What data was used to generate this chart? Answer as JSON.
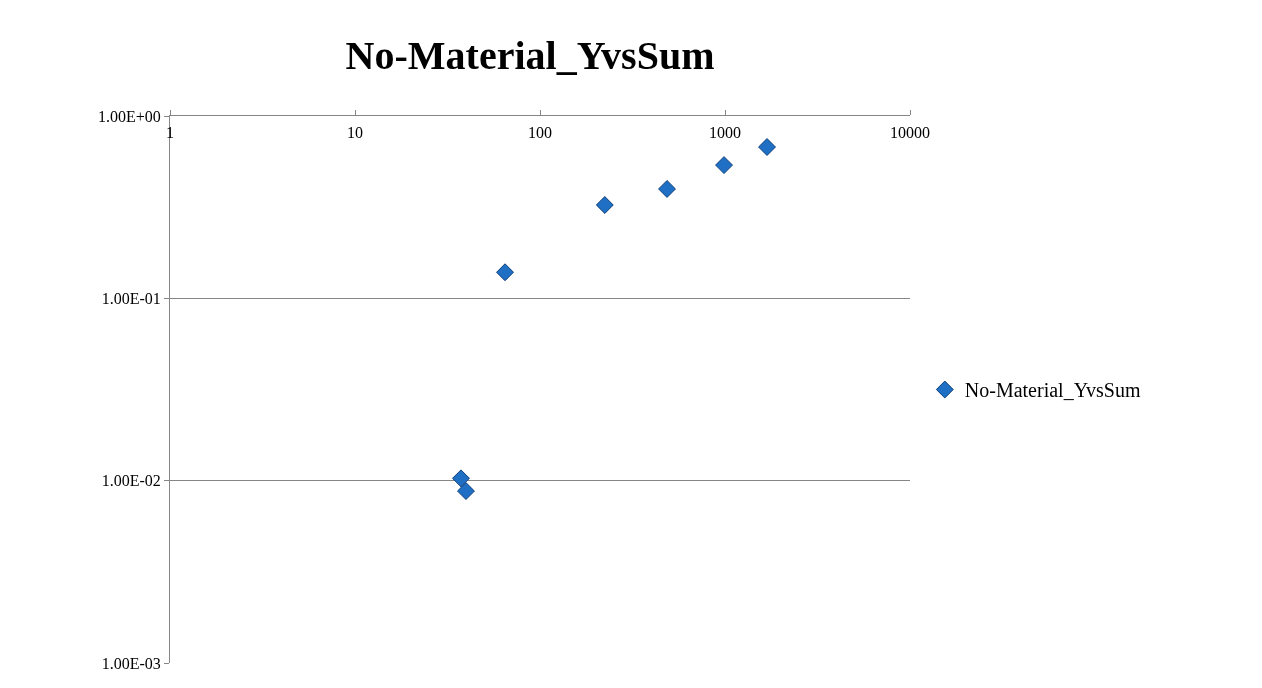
{
  "chart_data": {
    "type": "scatter",
    "title": "No-Material_YvsSum",
    "x": [
      37.4,
      39.8,
      64.7,
      224,
      486,
      988,
      1687
    ],
    "series": [
      {
        "name": "No-Material_YvsSum",
        "color": "#1f6fc5",
        "values": [
          0.0103,
          0.00877,
          0.139,
          0.325,
          0.398,
          0.538,
          0.676
        ]
      }
    ],
    "log": "xy",
    "xlim": [
      1,
      10000
    ],
    "xticks": [
      1,
      10,
      100,
      1000,
      10000
    ],
    "ylim": [
      0.001,
      1
    ],
    "yticks": [
      {
        "value": 0.001,
        "label": "1.00E-03"
      },
      {
        "value": 0.01,
        "label": "1.00E-02"
      },
      {
        "value": 0.1,
        "label": "1.00E-01"
      },
      {
        "value": 1,
        "label": "1.00E+00"
      }
    ],
    "grid": "y",
    "legend": "right",
    "marker": "diamond"
  }
}
